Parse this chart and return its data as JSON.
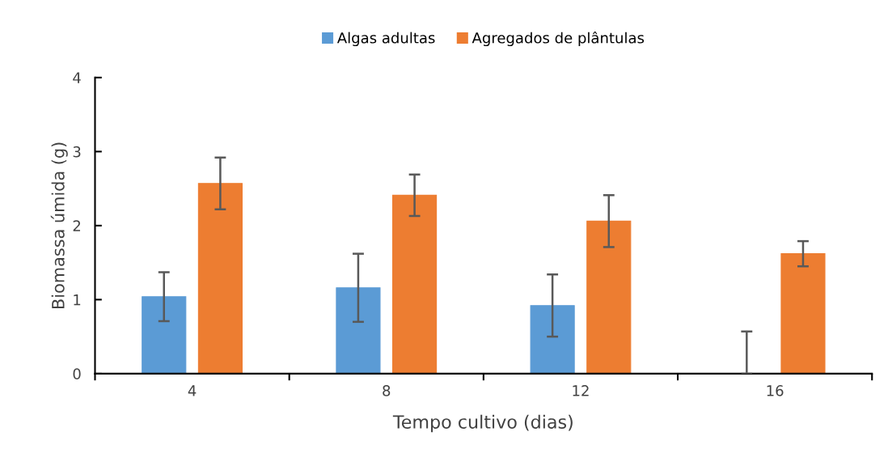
{
  "chart_data": {
    "type": "bar",
    "xlabel": "Tempo cultivo (dias)",
    "ylabel": "Biomassa úmida (g)",
    "categories": [
      "4",
      "8",
      "12",
      "16"
    ],
    "series": [
      {
        "name": "Algas adultas",
        "color": "#5b9bd5",
        "values": [
          1.04,
          1.16,
          0.92,
          0
        ],
        "errors": [
          0.33,
          0.46,
          0.42,
          [
            0,
            0.57
          ]
        ]
      },
      {
        "name": "Agregados de plântulas",
        "color": "#ed7d31",
        "values": [
          2.57,
          2.41,
          2.06,
          1.62
        ],
        "errors": [
          0.35,
          0.28,
          0.35,
          0.17
        ]
      }
    ],
    "ylim": [
      0,
      4
    ],
    "yticks": [
      0,
      1,
      2,
      3,
      4
    ],
    "grid": false,
    "legend": "top"
  }
}
